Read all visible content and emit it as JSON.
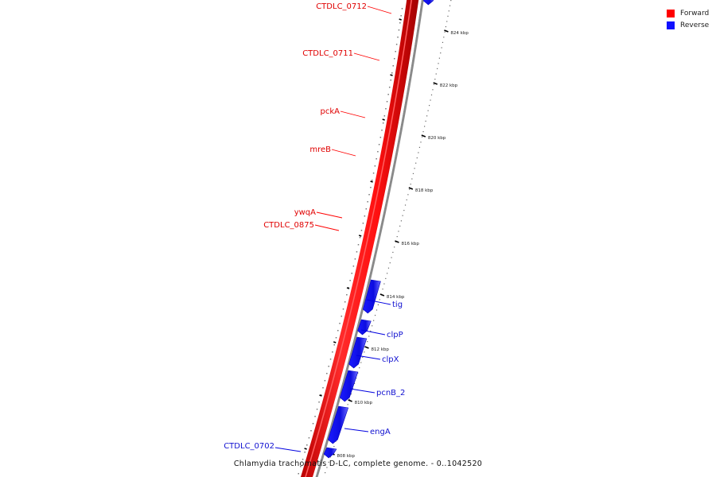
{
  "legend": {
    "forward_label": "Forward",
    "forward_color": "#ff0000",
    "reverse_label": "Reverse",
    "reverse_color": "#1010ff"
  },
  "caption": "Chlamydia trachomatis D-LC, complete genome. - 0..1042520",
  "forward_genes": [
    "CTDLC_0712",
    "CTDLC_0711",
    "pckA",
    "mreB",
    "ywqA",
    "CTDLC_0875"
  ],
  "reverse_genes": [
    "tig",
    "clpP",
    "clpX",
    "pcnB_2",
    "engA",
    "CTDLC_0702"
  ],
  "scale_ticks": [
    "824 kbp",
    "822 kbp",
    "820 kbp",
    "818 kbp",
    "816 kbp",
    "814 kbp",
    "812 kbp",
    "810 kbp",
    "808 kbp"
  ]
}
